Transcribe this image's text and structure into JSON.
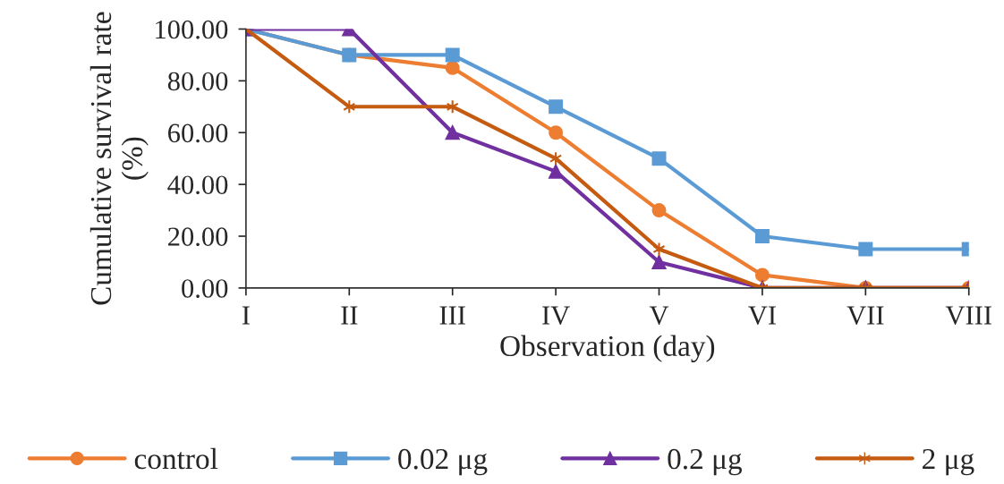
{
  "chart_data": {
    "type": "line",
    "xlabel": "Observation (day)",
    "ylabel": "Cumulative survival rate\n(%)",
    "categories": [
      "I",
      "II",
      "III",
      "IV",
      "V",
      "VI",
      "VII",
      "VIII"
    ],
    "series": [
      {
        "name": "control",
        "color": "#ed7d31",
        "marker": "circle",
        "values": [
          100,
          90,
          85,
          60,
          30,
          5,
          0,
          0
        ]
      },
      {
        "name": "0.02 μg",
        "color": "#5b9bd5",
        "marker": "square",
        "values": [
          100,
          90,
          90,
          70,
          50,
          20,
          15,
          15
        ]
      },
      {
        "name": "0.2 μg",
        "color": "#7030a0",
        "marker": "triangle",
        "values": [
          100,
          100,
          60,
          45,
          10,
          0,
          0,
          0
        ]
      },
      {
        "name": "2 μg",
        "color": "#c55a11",
        "marker": "cross",
        "values": [
          100,
          70,
          70,
          50,
          15,
          0,
          0,
          0
        ]
      }
    ],
    "ylim": [
      0,
      100
    ],
    "yticks": [
      {
        "value": 0,
        "label": "0.00"
      },
      {
        "value": 20,
        "label": "20.00"
      },
      {
        "value": 40,
        "label": "40.00"
      },
      {
        "value": 60,
        "label": "60.00"
      },
      {
        "value": 80,
        "label": "80.00"
      },
      {
        "value": 100,
        "label": "100.00"
      }
    ],
    "grid": false,
    "legend": "bottom",
    "line_style": "solid"
  }
}
